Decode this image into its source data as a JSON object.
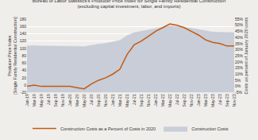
{
  "chart_data": {
    "type": "area",
    "title": "Bureau of Labor Statistics's Producer Price Index for Single Family Residential Construction\n(excluding capital investment, labor, and imports)",
    "y_label": "Producer Price Index\n[Single Family Residential Construction]",
    "y2_label": "Costs as percent of January 2020 costs",
    "categories": [
      "Jan-19",
      "Mar-19",
      "May-19",
      "Jul-19",
      "Sep-19",
      "Nov-19",
      "Jan-20",
      "Mar-20",
      "May-20",
      "Jul-20",
      "Sep-20",
      "Nov-20",
      "Jan-21",
      "Mar-21",
      "May-21",
      "Jul-21",
      "Sep-21",
      "Nov-21",
      "Jan-22",
      "Mar-22",
      "May-22",
      "Jul-22",
      "Sep-22",
      "Nov-22",
      "Jan-23",
      "Mar-23",
      "May-23",
      "Jul-23",
      "Sep-23",
      "Nov-23"
    ],
    "series": [
      {
        "name": "Construction Costs",
        "type": "area",
        "color": "#c8cdd8",
        "values": [
          107,
          108,
          107,
          107,
          107,
          107,
          107,
          106,
          105,
          109,
          112,
          114,
          118,
          122,
          135,
          143,
          147,
          151,
          155,
          158,
          161,
          160,
          158,
          155,
          152,
          148,
          145,
          144,
          143,
          143
        ]
      },
      {
        "name": "Construction Costs as a Percent of Costs in 2020",
        "type": "line",
        "color": "#c55a11",
        "axis": "y2",
        "values": [
          0,
          1,
          0,
          0,
          0,
          0,
          0,
          -1,
          -2,
          2,
          5,
          7,
          10,
          14,
          26,
          34,
          37,
          41,
          45,
          48,
          51,
          50,
          48,
          45,
          42,
          38,
          36,
          35,
          33,
          33
        ]
      }
    ],
    "ylim": [
      -20,
      180
    ],
    "yticks": [
      -20,
      0,
      20,
      40,
      60,
      80,
      100,
      120,
      140,
      160,
      180
    ],
    "y2lim": [
      -5,
      55
    ],
    "y2ticks": [
      {
        "value": -5,
        "label": "-5%"
      },
      {
        "value": 0,
        "label": "0%"
      },
      {
        "value": 5,
        "label": "5%"
      },
      {
        "value": 10,
        "label": "10%"
      },
      {
        "value": 15,
        "label": "15%"
      },
      {
        "value": 20,
        "label": "20%"
      },
      {
        "value": 25,
        "label": "25%"
      },
      {
        "value": 30,
        "label": "30%"
      },
      {
        "value": 35,
        "label": "35%"
      },
      {
        "value": 40,
        "label": "40%"
      },
      {
        "value": 45,
        "label": "45%"
      },
      {
        "value": 50,
        "label": "50%"
      },
      {
        "value": 55,
        "label": "55%"
      }
    ],
    "grid": true,
    "legend": "bottom"
  }
}
